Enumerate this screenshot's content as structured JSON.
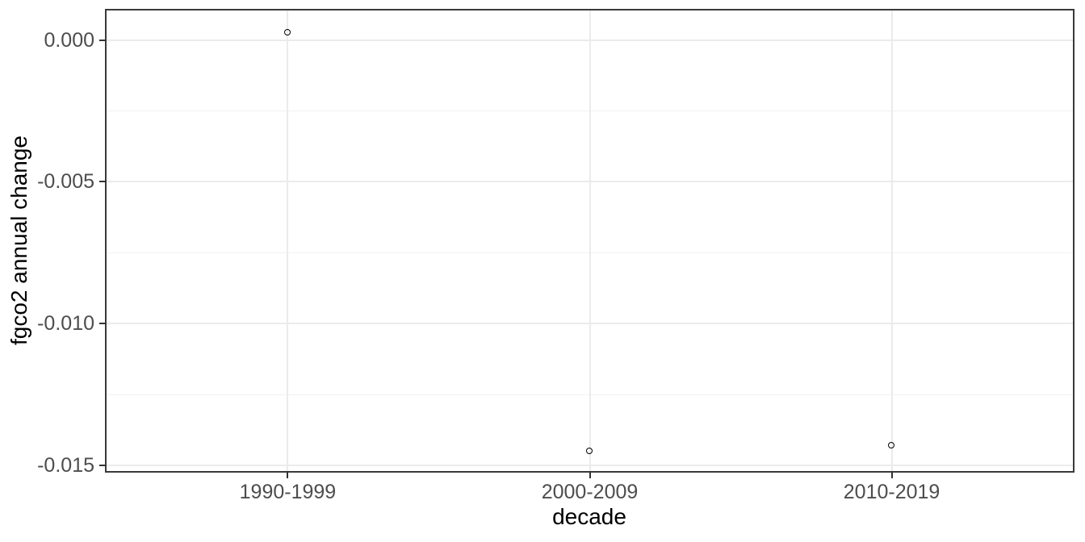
{
  "chart_data": {
    "type": "scatter",
    "title": "",
    "xlabel": "decade",
    "ylabel": "fgco2 annual change",
    "categories": [
      "1990-1999",
      "2000-2009",
      "2010-2019"
    ],
    "series": [
      {
        "name": "fgco2 annual change",
        "values": [
          0.00024,
          -0.0145,
          -0.0143
        ]
      }
    ],
    "marker": "open-circle",
    "legend": "none",
    "grid": "horizontal major+minor, vertical major at each category",
    "ylim": [
      -0.0152,
      0.00104
    ],
    "y_ticks": {
      "values": [
        0,
        -0.005,
        -0.01,
        -0.015
      ],
      "labels": [
        "0.000",
        "-0.005",
        "-0.010",
        "-0.015"
      ]
    },
    "y_minor_ticks": [
      -0.0025,
      -0.0075,
      -0.0125
    ],
    "theme": {
      "background": "#FFFFFF",
      "panel_background": "#FFFFFF",
      "panel_border": "#3A3A3A",
      "grid_major": "#EBEBEB",
      "grid_minor": "#F1F1F1",
      "tick_mark": "#333333",
      "tick_label_color": "#4D4D4D",
      "axis_title_color": "#000000",
      "point_color": "#000000"
    }
  }
}
